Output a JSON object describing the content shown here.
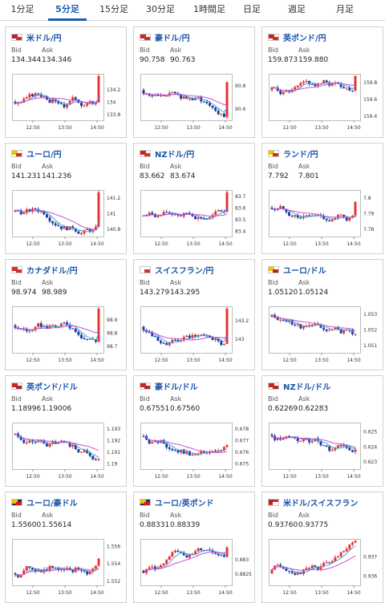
{
  "tabs": [
    {
      "label": "1分足",
      "active": false
    },
    {
      "label": "5分足",
      "active": true
    },
    {
      "label": "15分足",
      "active": false
    },
    {
      "label": "30分足",
      "active": false
    },
    {
      "label": "1時間足",
      "active": false
    },
    {
      "label": "日足",
      "active": false
    },
    {
      "label": "週足",
      "active": false
    },
    {
      "label": "月足",
      "active": false
    }
  ],
  "colors": {
    "up": "#e8342f",
    "down": "#1d3fa0",
    "ma_fast": "#3aa9e0",
    "ma_slow": "#c94fd1",
    "link": "#1a55a8",
    "active_tab": "#1c5fb0"
  },
  "quotes": [
    {
      "pair": "米ドル/円",
      "flag": "us-jp-flag-icon",
      "bid_label": "Bid",
      "ask_label": "Ask",
      "bid": "134.344",
      "ask": "134.346",
      "chart_data": {
        "type": "candlestick",
        "x_ticks": [
          "12:50",
          "13:50",
          "14:50"
        ],
        "y_ticks": [
          "134.2",
          "134",
          "133.8"
        ],
        "ylim": [
          133.7,
          134.45
        ]
      }
    },
    {
      "pair": "豪ドル/円",
      "flag": "au-jp-flag-icon",
      "bid_label": "Bid",
      "ask_label": "Ask",
      "bid": "90.758",
      "ask": "90.763",
      "chart_data": {
        "type": "candlestick",
        "x_ticks": [
          "12:50",
          "13:50",
          "14:50"
        ],
        "y_ticks": [
          "90.8",
          "90.6"
        ],
        "ylim": [
          90.5,
          90.9
        ]
      }
    },
    {
      "pair": "英ポンド/円",
      "flag": "gb-jp-flag-icon",
      "bid_label": "Bid",
      "ask_label": "Ask",
      "bid": "159.873",
      "ask": "159.880",
      "chart_data": {
        "type": "candlestick",
        "x_ticks": [
          "12:50",
          "13:50",
          "14:50"
        ],
        "y_ticks": [
          "159.8",
          "159.6",
          "159.4"
        ],
        "ylim": [
          159.35,
          159.9
        ]
      }
    },
    {
      "pair": "ユーロ/円",
      "flag": "eu-jp-flag-icon",
      "bid_label": "Bid",
      "ask_label": "Ask",
      "bid": "141.231",
      "ask": "141.236",
      "chart_data": {
        "type": "candlestick",
        "x_ticks": [
          "12:50",
          "13:50",
          "14:50"
        ],
        "y_ticks": [
          "141.2",
          "141",
          "140.8"
        ],
        "ylim": [
          140.7,
          141.3
        ]
      }
    },
    {
      "pair": "NZドル/円",
      "flag": "nz-jp-flag-icon",
      "bid_label": "Bid",
      "ask_label": "Ask",
      "bid": "83.662",
      "ask": "83.674",
      "chart_data": {
        "type": "candlestick",
        "x_ticks": [
          "12:50",
          "13:50",
          "14:50"
        ],
        "y_ticks": [
          "83.7",
          "83.6",
          "83.5",
          "83.4"
        ],
        "ylim": [
          83.35,
          83.75
        ]
      }
    },
    {
      "pair": "ランド/円",
      "flag": "za-jp-flag-icon",
      "bid_label": "Bid",
      "ask_label": "Ask",
      "bid": "7.792",
      "ask": "7.801",
      "chart_data": {
        "type": "candlestick",
        "x_ticks": [
          "12:50",
          "13:50",
          "14:50"
        ],
        "y_ticks": [
          "7.8",
          "7.79",
          "7.78"
        ],
        "ylim": [
          7.775,
          7.805
        ]
      }
    },
    {
      "pair": "カナダドル/円",
      "flag": "ca-jp-flag-icon",
      "bid_label": "Bid",
      "ask_label": "Ask",
      "bid": "98.974",
      "ask": "98.989",
      "chart_data": {
        "type": "candlestick",
        "x_ticks": [
          "12:50",
          "13:50",
          "14:50"
        ],
        "y_ticks": [
          "98.9",
          "98.8",
          "98.7"
        ],
        "ylim": [
          98.65,
          99.0
        ]
      }
    },
    {
      "pair": "スイスフラン/円",
      "flag": "ch-jp-flag-icon",
      "bid_label": "Bid",
      "ask_label": "Ask",
      "bid": "143.279",
      "ask": "143.295",
      "chart_data": {
        "type": "candlestick",
        "x_ticks": [
          "12:50",
          "13:50",
          "14:50"
        ],
        "y_ticks": [
          "143.2",
          "143"
        ],
        "ylim": [
          142.85,
          143.35
        ]
      }
    },
    {
      "pair": "ユーロ/ドル",
      "flag": "eu-us-flag-icon",
      "bid_label": "Bid",
      "ask_label": "Ask",
      "bid": "1.05120",
      "ask": "1.05124",
      "chart_data": {
        "type": "candlestick",
        "x_ticks": [
          "12:50",
          "13:50",
          "14:50"
        ],
        "y_ticks": [
          "1.053",
          "1.052",
          "1.051"
        ],
        "ylim": [
          1.0505,
          1.0535
        ]
      }
    },
    {
      "pair": "英ポンド/ドル",
      "flag": "gb-us-flag-icon",
      "bid_label": "Bid",
      "ask_label": "Ask",
      "bid": "1.18996",
      "ask": "1.19006",
      "chart_data": {
        "type": "candlestick",
        "x_ticks": [
          "12:50",
          "13:50",
          "14:50"
        ],
        "y_ticks": [
          "1.193",
          "1.192",
          "1.191",
          "1.19"
        ],
        "ylim": [
          1.1895,
          1.1935
        ]
      }
    },
    {
      "pair": "豪ドル/ドル",
      "flag": "au-us-flag-icon",
      "bid_label": "Bid",
      "ask_label": "Ask",
      "bid": "0.67551",
      "ask": "0.67560",
      "chart_data": {
        "type": "candlestick",
        "x_ticks": [
          "12:50",
          "13:50",
          "14:50"
        ],
        "y_ticks": [
          "0.678",
          "0.677",
          "0.676",
          "0.675"
        ],
        "ylim": [
          0.6745,
          0.6785
        ]
      }
    },
    {
      "pair": "NZドル/ドル",
      "flag": "nz-us-flag-icon",
      "bid_label": "Bid",
      "ask_label": "Ask",
      "bid": "0.62269",
      "ask": "0.62283",
      "chart_data": {
        "type": "candlestick",
        "x_ticks": [
          "12:50",
          "13:50",
          "14:50"
        ],
        "y_ticks": [
          "0.625",
          "0.624",
          "0.623"
        ],
        "ylim": [
          0.6225,
          0.6256
        ]
      }
    },
    {
      "pair": "ユーロ/豪ドル",
      "flag": "eu-au-flag-icon",
      "bid_label": "Bid",
      "ask_label": "Ask",
      "bid": "1.55600",
      "ask": "1.55614",
      "chart_data": {
        "type": "candlestick",
        "x_ticks": [
          "12:50",
          "13:50",
          "14:50"
        ],
        "y_ticks": [
          "1.556",
          "1.554",
          "1.552"
        ],
        "ylim": [
          1.5515,
          1.5568
        ]
      }
    },
    {
      "pair": "ユーロ/英ポンド",
      "flag": "eu-gb-flag-icon",
      "bid_label": "Bid",
      "ask_label": "Ask",
      "bid": "0.88331",
      "ask": "0.88339",
      "chart_data": {
        "type": "candlestick",
        "x_ticks": [
          "12:50",
          "13:50",
          "14:50"
        ],
        "y_ticks": [
          "0.883",
          "0.8825"
        ],
        "ylim": [
          0.8821,
          0.8837
        ]
      }
    },
    {
      "pair": "米ドル/スイスフラン",
      "flag": "us-ch-flag-icon",
      "bid_label": "Bid",
      "ask_label": "Ask",
      "bid": "0.93760",
      "ask": "0.93775",
      "chart_data": {
        "type": "candlestick",
        "x_ticks": [
          "12:50",
          "13:50",
          "14:50"
        ],
        "y_ticks": [
          "0.937",
          "0.936"
        ],
        "ylim": [
          0.9355,
          0.9379
        ]
      }
    }
  ]
}
